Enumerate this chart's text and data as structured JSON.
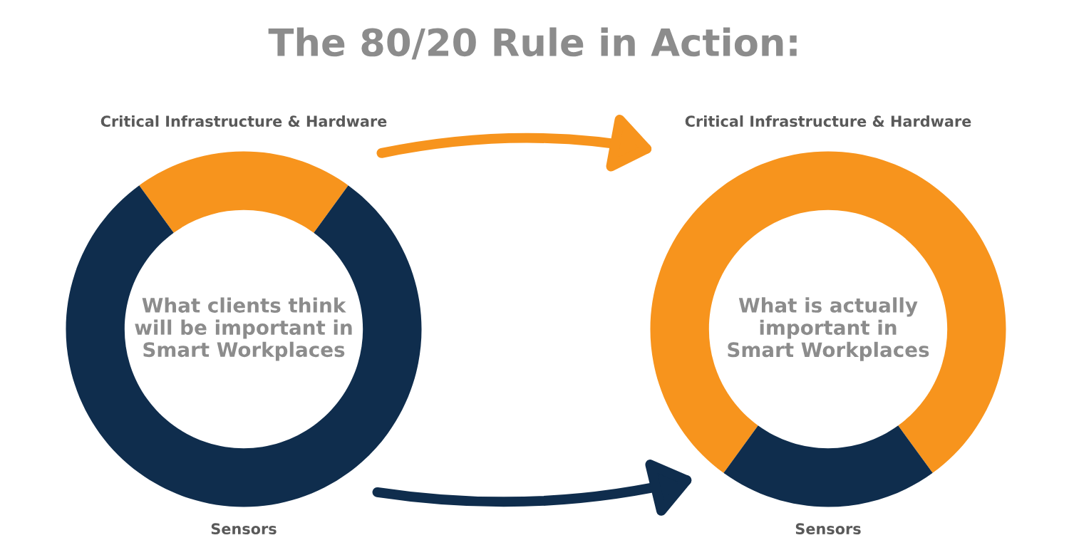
{
  "chart_data": [
    {
      "type": "donut",
      "title": "The 80/20 Rule in Action:",
      "categories": [
        "Critical Infrastructure & Hardware",
        "Sensors"
      ],
      "values": [
        20,
        80
      ],
      "colors": [
        "#f7941d",
        "#0f2d4d"
      ],
      "annotations": [
        "What clients think\nwill be important in\nSmart Workplaces"
      ]
    },
    {
      "type": "donut",
      "categories": [
        "Critical Infrastructure & Hardware",
        "Sensors"
      ],
      "values": [
        80,
        20
      ],
      "colors": [
        "#f7941d",
        "#0f2d4d"
      ],
      "annotations": [
        "What is actually\nimportant in\nSmart Workplaces"
      ]
    }
  ]
}
